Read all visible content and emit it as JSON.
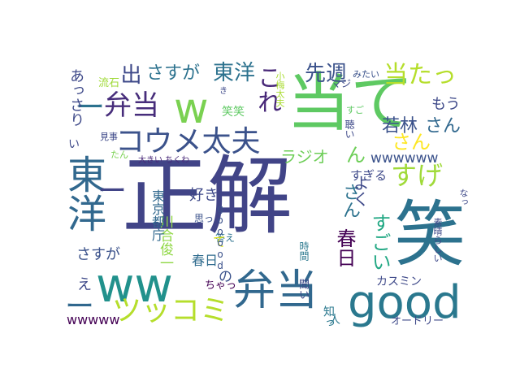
{
  "words": [
    {
      "key": "seikai",
      "text": "正解",
      "color": "#414487"
    },
    {
      "key": "warai",
      "text": "笑",
      "color": "#2c728e"
    },
    {
      "key": "ww",
      "text": "ww",
      "color": "#21918c"
    },
    {
      "key": "good",
      "text": "good",
      "color": "#2a788e"
    },
    {
      "key": "atete",
      "text": "当て",
      "color": "#5ec962"
    },
    {
      "key": "bentou_big",
      "text": "弁当",
      "color": "#31688e"
    },
    {
      "key": "w",
      "text": "w",
      "color": "#7ad151"
    },
    {
      "key": "touyou_left",
      "text": "東洋",
      "color": "#31688e"
    },
    {
      "key": "tsukkomi",
      "text": "ツッコミ",
      "color": "#b5de2b"
    },
    {
      "key": "koume",
      "text": "コウメ太夫",
      "color": "#3b528b"
    },
    {
      "key": "bentou_small",
      "text": "弁当",
      "color": "#472d7b"
    },
    {
      "key": "dash1",
      "text": "ー",
      "color": "#31688e"
    },
    {
      "key": "dash2",
      "text": "ー",
      "color": "#2c728e"
    },
    {
      "key": "dash3",
      "text": "ー",
      "color": "#414487"
    },
    {
      "key": "sasuga1",
      "text": "さすが",
      "color": "#2c728e"
    },
    {
      "key": "touyou_top",
      "text": "東洋",
      "color": "#2c728e"
    },
    {
      "key": "kore",
      "text": "これ",
      "color": "#482878"
    },
    {
      "key": "dete",
      "text": "出",
      "color": "#3e4989"
    },
    {
      "key": "senshu",
      "text": "先週",
      "color": "#3b528b"
    },
    {
      "key": "atatt",
      "text": "当たっ",
      "color": "#b5de2b"
    },
    {
      "key": "sugee",
      "text": "すげ",
      "color": "#a0da39"
    },
    {
      "key": "wakabayashi",
      "text": "若林",
      "color": "#3b528b"
    },
    {
      "key": "san1",
      "text": "さん",
      "color": "#31688e"
    },
    {
      "key": "san2",
      "text": "さん",
      "color": "#fde725"
    },
    {
      "key": "mou",
      "text": "もう",
      "color": "#3e4989"
    },
    {
      "key": "wwwwww",
      "text": "wwwwww",
      "color": "#3b528b"
    },
    {
      "key": "radio",
      "text": "ラジオ",
      "color": "#6ece58"
    },
    {
      "key": "n",
      "text": "ん",
      "color": "#6ece58"
    },
    {
      "key": "sukina",
      "text": "好き",
      "color": "#3e4989"
    },
    {
      "key": "kasuga_v",
      "text": "春日",
      "color": "#440154"
    },
    {
      "key": "san3",
      "text": "さん",
      "color": "#2c728e"
    },
    {
      "key": "sugoi",
      "text": "すごい",
      "color": "#22a884"
    },
    {
      "key": "yoku",
      "text": "よく",
      "color": "#3e4989"
    },
    {
      "key": "sugiru",
      "text": "すぎる",
      "color": "#3e4989"
    },
    {
      "key": "kasuga_h",
      "text": "春日",
      "color": "#2f6b8e"
    },
    {
      "key": "sasuga2",
      "text": "さすが",
      "color": "#3b528b"
    },
    {
      "key": "no",
      "text": "の",
      "color": "#3b528b"
    },
    {
      "key": "e",
      "text": "え",
      "color": "#3e4989"
    },
    {
      "key": "wwwww",
      "text": "wwwww",
      "color": "#440154"
    },
    {
      "key": "kasumin",
      "text": "カスミン",
      "color": "#3e4989"
    },
    {
      "key": "audrey",
      "text": "オードリー",
      "color": "#3e4989"
    },
    {
      "key": "shitt",
      "text": "知っ",
      "color": "#2a788e"
    },
    {
      "key": "hito",
      "text": "人",
      "color": "#2a788e"
    },
    {
      "key": "kii",
      "text": "聞い",
      "color": "#3e4989"
    },
    {
      "key": "chatt",
      "text": "ちゃっ",
      "color": "#440154"
    },
    {
      "key": "kotae",
      "text": "答え",
      "color": "#2c728e"
    },
    {
      "key": "omo",
      "text": "思っ",
      "color": "#3b528b"
    },
    {
      "key": "te",
      "text": "て",
      "color": "#dde318"
    },
    {
      "key": "goooood",
      "text": "gooood",
      "color": "#3b528b"
    },
    {
      "key": "kawai",
      "text": "川合俊一",
      "color": "#8fd744"
    },
    {
      "key": "tokyo",
      "text": "東京都庁",
      "color": "#31688e"
    },
    {
      "key": "jikan",
      "text": "時間",
      "color": "#2a788e"
    },
    {
      "key": "subarashii",
      "text": "素晴らしい",
      "color": "#3e4989"
    },
    {
      "key": "naa",
      "text": "なっ",
      "color": "#3e4989"
    },
    {
      "key": "ookii",
      "text": "大きい ちくわ",
      "color": "#482878"
    },
    {
      "key": "tan",
      "text": "たん",
      "color": "#7ad151"
    },
    {
      "key": "mikoto",
      "text": "見事",
      "color": "#3e4989"
    },
    {
      "key": "warawara",
      "text": "笑笑",
      "color": "#5ec962"
    },
    {
      "key": "ki",
      "text": "き",
      "color": "#3e4989"
    },
    {
      "key": "kouma",
      "text": "小梅太夫",
      "color": "#aadc32"
    },
    {
      "key": "sugo",
      "text": "すご",
      "color": "#5ec962"
    },
    {
      "key": "kiki",
      "text": "聴い",
      "color": "#3e4989"
    },
    {
      "key": "maji",
      "text": "マジ",
      "color": "#3e4989"
    },
    {
      "key": "mitai",
      "text": "みたい",
      "color": "#3b528b"
    },
    {
      "key": "ryuuseki",
      "text": "流石",
      "color": "#a0da39"
    },
    {
      "key": "assari",
      "text": "あっさり",
      "color": "#3e4989"
    },
    {
      "key": "ii",
      "text": "い",
      "color": "#3e4989"
    }
  ]
}
